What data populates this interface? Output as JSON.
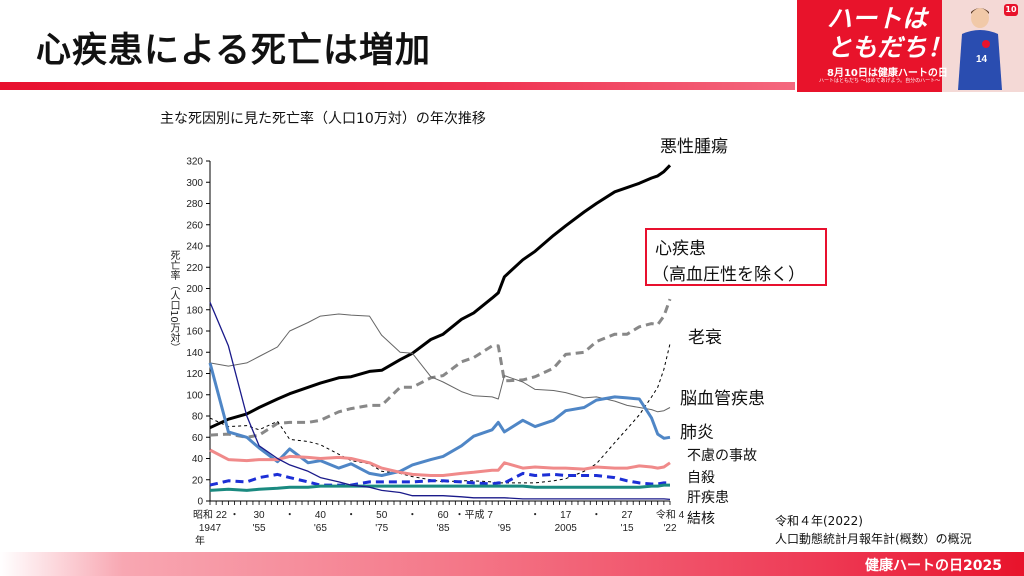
{
  "header": {
    "title": "心疾患による死亡は増加"
  },
  "banner": {
    "headline_line1": "ハートは",
    "headline_line2": "ともだち！",
    "date_text": "8月10日は健康ハートの日",
    "sub_text": "ハートはともだち ～ほめてあげよう。自分のハート～",
    "jersey_number": "14",
    "logo_text": "10"
  },
  "chart_title": "主な死因別に見た死亡率（人口10万対）の年次推移",
  "footer": {
    "source_line1": "令和４年(2022)",
    "source_line2": "人口動態統計月報年計(概数）の概況",
    "brand": "健康ハートの日2025"
  },
  "highlight_box": {
    "line1": "心疾患",
    "line2": "（高血圧性を除く）"
  },
  "chart_data": {
    "type": "line",
    "title": "主な死因別に見た死亡率（人口10万対）の年次推移",
    "xlabel": "年",
    "ylabel": "死亡率（人口10万対）",
    "ylim": [
      0,
      320
    ],
    "yticks": [
      0,
      20,
      40,
      60,
      80,
      100,
      120,
      140,
      160,
      180,
      200,
      220,
      240,
      260,
      280,
      300,
      320
    ],
    "xlim": [
      1947,
      2022
    ],
    "xtick_labels": [
      {
        "year": 1947,
        "era": "昭和 22",
        "western": "1947"
      },
      {
        "year": 1951,
        "era": "・",
        "western": ""
      },
      {
        "year": 1955,
        "era": "30",
        "western": "'55"
      },
      {
        "year": 1960,
        "era": "・",
        "western": ""
      },
      {
        "year": 1965,
        "era": "40",
        "western": "'65"
      },
      {
        "year": 1970,
        "era": "・",
        "western": ""
      },
      {
        "year": 1975,
        "era": "50",
        "western": "'75"
      },
      {
        "year": 1980,
        "era": "・",
        "western": ""
      },
      {
        "year": 1985,
        "era": "60",
        "western": "'85"
      },
      {
        "year": 1990,
        "era": "・平成 7",
        "western": ""
      },
      {
        "year": 1995,
        "era": "",
        "western": "'95"
      },
      {
        "year": 2000,
        "era": "・",
        "western": ""
      },
      {
        "year": 2005,
        "era": "17",
        "western": "2005"
      },
      {
        "year": 2010,
        "era": "・",
        "western": ""
      },
      {
        "year": 2015,
        "era": "27",
        "western": "'15"
      },
      {
        "year": 2022,
        "era": "令和 4",
        "western": "'22"
      }
    ],
    "grid": false,
    "legend": "inline-right",
    "x": [
      1947,
      1950,
      1953,
      1955,
      1958,
      1960,
      1963,
      1965,
      1968,
      1970,
      1973,
      1975,
      1978,
      1980,
      1983,
      1985,
      1988,
      1990,
      1993,
      1994,
      1995,
      1998,
      2000,
      2003,
      2005,
      2008,
      2010,
      2013,
      2015,
      2017,
      2019,
      2020,
      2021,
      2022
    ],
    "series": [
      {
        "name": "悪性腫瘍",
        "color": "#000000",
        "style": "solid-thick",
        "values": [
          69,
          77,
          82,
          88,
          96,
          101,
          107,
          111,
          116,
          117,
          122,
          123,
          133,
          139,
          152,
          157,
          171,
          177,
          191,
          196,
          211,
          227,
          235,
          250,
          259,
          272,
          280,
          291,
          295,
          299,
          304,
          306,
          310,
          316
        ]
      },
      {
        "name": "心疾患（高血圧性を除く）",
        "color": "#888888",
        "style": "dashed-thick",
        "values": [
          62,
          63,
          60,
          62,
          73,
          74,
          74,
          76,
          84,
          87,
          90,
          90,
          107,
          107,
          116,
          118,
          131,
          135,
          146,
          146,
          113,
          114,
          117,
          125,
          138,
          140,
          150,
          157,
          157,
          164,
          167,
          166,
          174,
          190
        ]
      },
      {
        "name": "老衰",
        "color": "#000000",
        "style": "dashed-thin",
        "values": [
          78,
          70,
          71,
          67,
          75,
          58,
          56,
          53,
          44,
          38,
          35,
          28,
          26,
          23,
          20,
          18,
          19,
          19,
          18,
          17,
          17,
          17,
          17,
          19,
          21,
          28,
          35,
          55,
          68,
          81,
          98,
          107,
          124,
          148
        ]
      },
      {
        "name": "脳血管疾患",
        "color": "#666666",
        "style": "solid-thin",
        "values": [
          130,
          127,
          130,
          136,
          145,
          160,
          168,
          174,
          176,
          175,
          174,
          156,
          140,
          139,
          117,
          112,
          103,
          99,
          98,
          96,
          118,
          112,
          105,
          104,
          102,
          97,
          98,
          94,
          90,
          88,
          86,
          84,
          85,
          88
        ]
      },
      {
        "name": "肺炎",
        "color": "#4f86c6",
        "style": "solid-thick",
        "values": [
          130,
          65,
          60,
          50,
          37,
          49,
          36,
          38,
          31,
          35,
          26,
          24,
          28,
          34,
          39,
          42,
          52,
          61,
          67,
          74,
          65,
          76,
          70,
          76,
          85,
          88,
          95,
          98,
          97,
          96,
          78,
          63,
          59,
          60
        ]
      },
      {
        "name": "不慮の事故",
        "color": "#f08a8a",
        "style": "solid-thick",
        "values": [
          48,
          39,
          38,
          39,
          39,
          42,
          41,
          40,
          41,
          40,
          36,
          31,
          27,
          25,
          24,
          24,
          26,
          27,
          29,
          29,
          36,
          31,
          32,
          31,
          31,
          30,
          32,
          31,
          31,
          33,
          32,
          31,
          32,
          36
        ]
      },
      {
        "name": "自殺",
        "color": "#1c2fd6",
        "style": "dashed-thick",
        "values": [
          15,
          19,
          18,
          22,
          25,
          22,
          18,
          15,
          15,
          15,
          18,
          18,
          18,
          18,
          19,
          19,
          18,
          17,
          16,
          17,
          17,
          26,
          24,
          25,
          24,
          24,
          24,
          22,
          19,
          17,
          16,
          16,
          17,
          17
        ]
      },
      {
        "name": "肝疾患",
        "color": "#1a8a80",
        "style": "solid-thick",
        "values": [
          10,
          11,
          10,
          11,
          12,
          13,
          13,
          14,
          14,
          14,
          14,
          14,
          14,
          14,
          14,
          14,
          14,
          14,
          14,
          14,
          14,
          14,
          13,
          13,
          13,
          13,
          13,
          13,
          13,
          13,
          14,
          14,
          15,
          15
        ]
      },
      {
        "name": "結核",
        "color": "#1a1a8a",
        "style": "solid-thin",
        "values": [
          187,
          146,
          80,
          52,
          40,
          34,
          28,
          22,
          18,
          15,
          13,
          10,
          8,
          5,
          5,
          5,
          4,
          3,
          3,
          3,
          3,
          2,
          2,
          2,
          2,
          2,
          2,
          2,
          2,
          2,
          2,
          2,
          2,
          1.5
        ]
      }
    ],
    "series_labels": [
      {
        "name": "悪性腫瘍"
      },
      {
        "name": "老衰"
      },
      {
        "name": "脳血管疾患"
      },
      {
        "name": "肺炎"
      },
      {
        "name": "不慮の事故"
      },
      {
        "name": "自殺"
      },
      {
        "name": "肝疾患"
      },
      {
        "name": "結核"
      }
    ]
  }
}
